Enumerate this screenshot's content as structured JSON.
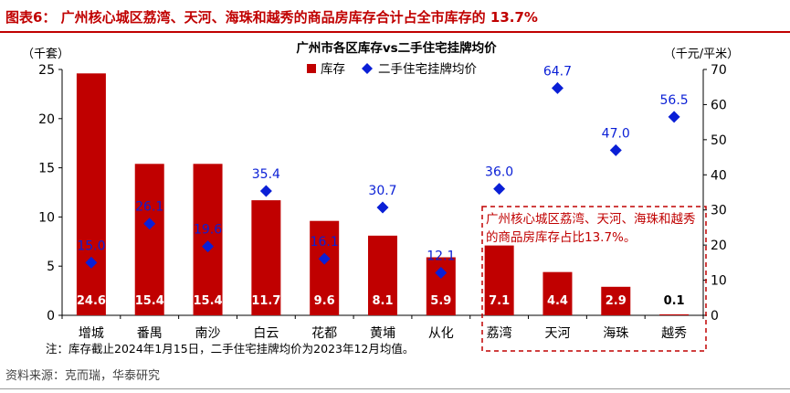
{
  "figure": {
    "title": "图表6： 广州核心城区荔湾、天河、海珠和越秀的商品房库存合计占全市库存的 13.7%",
    "source": "资料来源：克而瑞，华泰研究",
    "callout": "广州核心城区荔湾、天河、海珠和越秀的商品房库存占比13.7%。"
  },
  "chart_data": {
    "type": "bar",
    "title": "广州市各区库存vs二手住宅挂牌均价",
    "y_left_unit": "（千套）",
    "y_right_unit": "（千元/平米）",
    "note": "注：库存截止2024年1月15日，二手住宅挂牌均价为2023年12月均值。",
    "categories": [
      "增城",
      "番禺",
      "南沙",
      "白云",
      "花都",
      "黄埔",
      "从化",
      "荔湾",
      "天河",
      "海珠",
      "越秀"
    ],
    "ylim_left": [
      0,
      25
    ],
    "yticks_left": [
      0,
      5,
      10,
      15,
      20,
      25
    ],
    "ylim_right": [
      0,
      70
    ],
    "yticks_right": [
      0,
      10,
      20,
      30,
      40,
      50,
      60,
      70
    ],
    "series": [
      {
        "name": "库存",
        "axis": "left",
        "kind": "bar",
        "color": "#c00000",
        "values": [
          24.6,
          15.4,
          15.4,
          11.7,
          9.6,
          8.1,
          5.9,
          7.1,
          4.4,
          2.9,
          0.1
        ],
        "labels": [
          "24.6",
          "15.4",
          "15.4",
          "11.7",
          "9.6",
          "8.1",
          "5.9",
          "7.1",
          "4.4",
          "2.9",
          "0.1"
        ]
      },
      {
        "name": "二手住宅挂牌均价",
        "axis": "right",
        "kind": "scatter",
        "color": "#0a1fd6",
        "values": [
          15.0,
          26.1,
          19.6,
          35.4,
          16.1,
          30.7,
          12.1,
          36.0,
          64.7,
          47.0,
          56.5
        ],
        "labels": [
          "15.0",
          "26.1",
          "19.6",
          "35.4",
          "16.1",
          "30.7",
          "12.1",
          "36.0",
          "64.7",
          "47.0",
          "56.5"
        ]
      }
    ],
    "legend_position": "top",
    "grid": false
  }
}
